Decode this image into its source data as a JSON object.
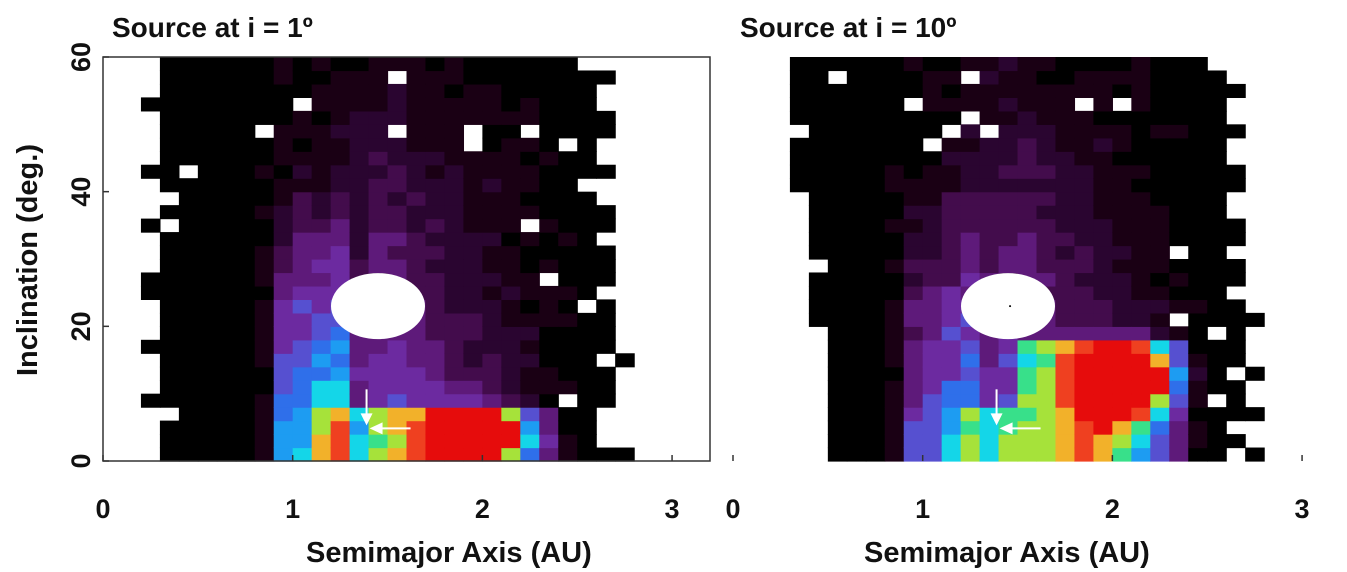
{
  "figure": {
    "ylabel": "Inclination (deg.)",
    "xlabel": "Semimajor Axis (AU)"
  },
  "chart_data": [
    {
      "type": "heatmap",
      "title": "Source at i = 1º",
      "xlabel": "Semimajor Axis (AU)",
      "ylabel": "Inclination (deg.)",
      "xlim": [
        0,
        3.2
      ],
      "ylim": [
        0,
        60
      ],
      "x_ticks": [
        "0",
        "1",
        "2",
        "3"
      ],
      "y_ticks": [
        "0",
        "20",
        "40",
        "60"
      ],
      "colormap": [
        "#000000",
        "#1a0014",
        "#2a0530",
        "#430c4c",
        "#5e1a7a",
        "#6c2aa0",
        "#5650d0",
        "#2f6fea",
        "#1d9cf2",
        "#14d6e8",
        "#38e08a",
        "#a6e23a",
        "#f2b12a",
        "#ef4020",
        "#e60c0c"
      ],
      "peak": {
        "a": 2.0,
        "i": 4
      },
      "hole": {
        "a": 1.45,
        "i": 23
      },
      "arrow_marker": {
        "a": 1.4,
        "i": 5
      }
    },
    {
      "type": "heatmap",
      "title": "Source at i = 10º",
      "xlabel": "Semimajor Axis (AU)",
      "ylabel": "Inclination (deg.)",
      "xlim": [
        0,
        3.2
      ],
      "ylim": [
        0,
        60
      ],
      "x_ticks": [
        "0",
        "1",
        "2",
        "3"
      ],
      "y_ticks": [],
      "colormap": [
        "#000000",
        "#1a0014",
        "#2a0530",
        "#430c4c",
        "#5e1a7a",
        "#6c2aa0",
        "#5650d0",
        "#2f6fea",
        "#1d9cf2",
        "#14d6e8",
        "#38e08a",
        "#a6e23a",
        "#f2b12a",
        "#ef4020",
        "#e60c0c"
      ],
      "peak": {
        "a": 2.08,
        "i": 12
      },
      "hole": {
        "a": 1.45,
        "i": 23
      },
      "arrow_marker": {
        "a": 1.4,
        "i": 5
      }
    }
  ]
}
